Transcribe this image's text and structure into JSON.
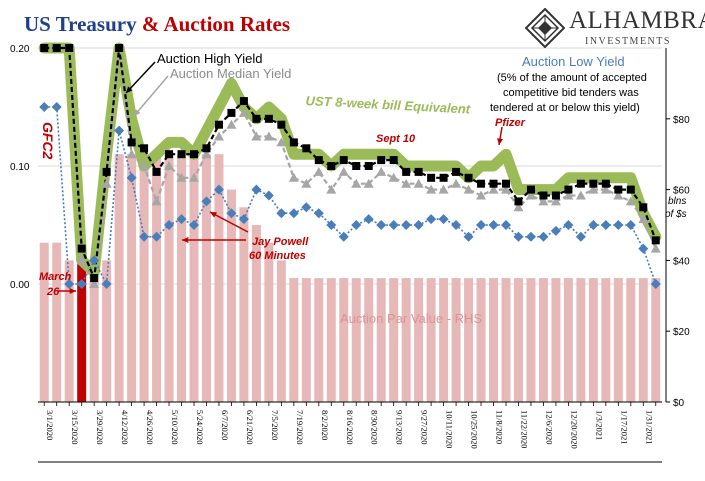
{
  "title": {
    "part1": "US Treasury",
    "part2": "& Auction Rates"
  },
  "logo": {
    "name": "ALHAMBRA",
    "subtitle": "INVESTMENTS"
  },
  "colors": {
    "title_blue": "#1f3f8f",
    "title_red": "#c00000",
    "high": "#000000",
    "median": "#a6a6a6",
    "low": "#4a7ebb",
    "bill": "#9bbb59",
    "par": "#e6b8b7",
    "par_highlight": "#c00000",
    "note_red": "#c00000"
  },
  "chart_data": {
    "type": "line",
    "x": [
      "3/1/2020",
      "3/8/2020",
      "3/15/2020",
      "3/22/2020",
      "3/29/2020",
      "4/5/2020",
      "4/12/2020",
      "4/19/2020",
      "4/26/2020",
      "5/3/2020",
      "5/10/2020",
      "5/17/2020",
      "5/24/2020",
      "5/31/2020",
      "6/7/2020",
      "6/14/2020",
      "6/21/2020",
      "6/28/2020",
      "7/5/2020",
      "7/12/2020",
      "7/19/2020",
      "7/26/2020",
      "8/2/2020",
      "8/9/2020",
      "8/16/2020",
      "8/23/2020",
      "8/30/2020",
      "9/6/2020",
      "9/13/2020",
      "9/20/2020",
      "9/27/2020",
      "10/4/2020",
      "10/11/2020",
      "10/18/2020",
      "10/25/2020",
      "11/1/2020",
      "11/8/2020",
      "11/15/2020",
      "11/22/2020",
      "11/29/2020",
      "12/6/2020",
      "12/13/2020",
      "12/20/2020",
      "12/27/2020",
      "1/3/2021",
      "1/10/2021",
      "1/17/2021",
      "1/24/2021",
      "1/31/2021",
      "2/3/2021"
    ],
    "x_tick_labels": [
      "3/1/2020",
      "3/15/2020",
      "3/29/2020",
      "4/12/2020",
      "4/26/2020",
      "5/10/2020",
      "5/24/2020",
      "6/7/2020",
      "6/21/2020",
      "7/5/2020",
      "7/19/2020",
      "8/2/2020",
      "8/16/2020",
      "8/30/2020",
      "9/13/2020",
      "9/27/2020",
      "10/11/2020",
      "10/25/2020",
      "11/8/2020",
      "11/22/2020",
      "12/6/2020",
      "12/20/2020",
      "1/3/2021",
      "1/17/2021",
      "1/31/2021"
    ],
    "y_left": {
      "ticks": [
        "0.20",
        "0.10",
        "0.00"
      ],
      "ylim": [
        -0.1,
        0.2
      ]
    },
    "y_right": {
      "ticks": [
        "$80",
        "$60",
        "$40",
        "$20",
        "$0"
      ],
      "ylim": [
        0,
        100
      ],
      "label_lines": [
        "blns",
        "of $s"
      ]
    },
    "series": [
      {
        "name": "UST 8-week bill Equivalent",
        "axis": "left",
        "values": [
          0.2,
          0.2,
          0.2,
          0.02,
          0.01,
          0.11,
          0.2,
          0.14,
          0.1,
          0.11,
          0.12,
          0.12,
          0.11,
          0.13,
          0.15,
          0.17,
          0.15,
          0.14,
          0.15,
          0.14,
          0.11,
          0.11,
          0.11,
          0.1,
          0.11,
          0.11,
          0.11,
          0.11,
          0.11,
          0.1,
          0.1,
          0.1,
          0.1,
          0.1,
          0.09,
          0.1,
          0.1,
          0.11,
          0.08,
          0.08,
          0.08,
          0.08,
          0.09,
          0.09,
          0.09,
          0.09,
          0.09,
          0.09,
          0.06,
          0.04
        ]
      },
      {
        "name": "Auction High Yield",
        "axis": "left",
        "values": [
          0.2,
          0.2,
          0.2,
          0.03,
          0.005,
          0.095,
          0.2,
          0.12,
          0.115,
          0.095,
          0.11,
          0.11,
          0.11,
          0.115,
          0.135,
          0.145,
          0.155,
          0.14,
          0.14,
          0.135,
          0.12,
          0.115,
          0.105,
          0.1,
          0.105,
          0.1,
          0.1,
          0.105,
          0.105,
          0.095,
          0.095,
          0.09,
          0.09,
          0.095,
          0.09,
          0.085,
          0.085,
          0.085,
          0.07,
          0.08,
          0.075,
          0.075,
          0.08,
          0.085,
          0.085,
          0.085,
          0.08,
          0.08,
          0.065,
          0.037
        ]
      },
      {
        "name": "Auction Median Yield",
        "axis": "left",
        "values": [
          0.2,
          0.2,
          0.2,
          0.02,
          0.0,
          0.085,
          0.2,
          0.11,
          0.1,
          0.07,
          0.1,
          0.09,
          0.09,
          0.11,
          0.125,
          0.135,
          0.145,
          0.125,
          0.125,
          0.12,
          0.09,
          0.085,
          0.095,
          0.08,
          0.095,
          0.085,
          0.085,
          0.095,
          0.09,
          0.085,
          0.085,
          0.08,
          0.08,
          0.085,
          0.08,
          0.075,
          0.08,
          0.08,
          0.065,
          0.075,
          0.07,
          0.07,
          0.075,
          0.075,
          0.08,
          0.08,
          0.075,
          0.07,
          0.055,
          0.03
        ]
      },
      {
        "name": "Auction Low Yield",
        "axis": "left",
        "values": [
          0.15,
          0.15,
          0.0,
          0.0,
          0.02,
          0.0,
          0.13,
          0.09,
          0.04,
          0.04,
          0.05,
          0.055,
          0.05,
          0.07,
          0.08,
          0.06,
          0.055,
          0.08,
          0.075,
          0.06,
          0.06,
          0.065,
          0.06,
          0.05,
          0.04,
          0.05,
          0.055,
          0.05,
          0.05,
          0.05,
          0.05,
          0.055,
          0.055,
          0.05,
          0.04,
          0.05,
          0.05,
          0.05,
          0.04,
          0.04,
          0.04,
          0.045,
          0.05,
          0.04,
          0.05,
          0.05,
          0.05,
          0.05,
          0.03,
          0.0
        ]
      },
      {
        "name": "Auction Par Value - RHS",
        "axis": "right",
        "values": [
          45,
          45,
          40,
          40,
          40,
          40,
          70,
          70,
          70,
          70,
          70,
          70,
          70,
          70,
          70,
          60,
          55,
          50,
          45,
          40,
          35,
          35,
          35,
          35,
          35,
          35,
          35,
          35,
          35,
          35,
          35,
          35,
          35,
          35,
          35,
          35,
          35,
          35,
          35,
          35,
          35,
          35,
          35,
          35,
          35,
          35,
          35,
          35,
          35,
          35
        ],
        "highlight_index": 3
      }
    ]
  },
  "legend": {
    "high": "Auction High Yield",
    "median": "Auction Median Yield",
    "low_title": "Auction Low Yield",
    "low_note": [
      "(5% of the amount of accepted",
      "competitive bid tenders was",
      "tendered at or below this yield)"
    ],
    "bill": "UST 8-week bill Equivalent",
    "par": "Auction Par Value - RHS"
  },
  "annotations": {
    "gfc2": "GFC2",
    "march": "March",
    "march_day": "26",
    "powell_1": "Jay Powell",
    "powell_2": "60 Minutes",
    "sept": "Sept 10",
    "pfizer": "Pfizer"
  }
}
